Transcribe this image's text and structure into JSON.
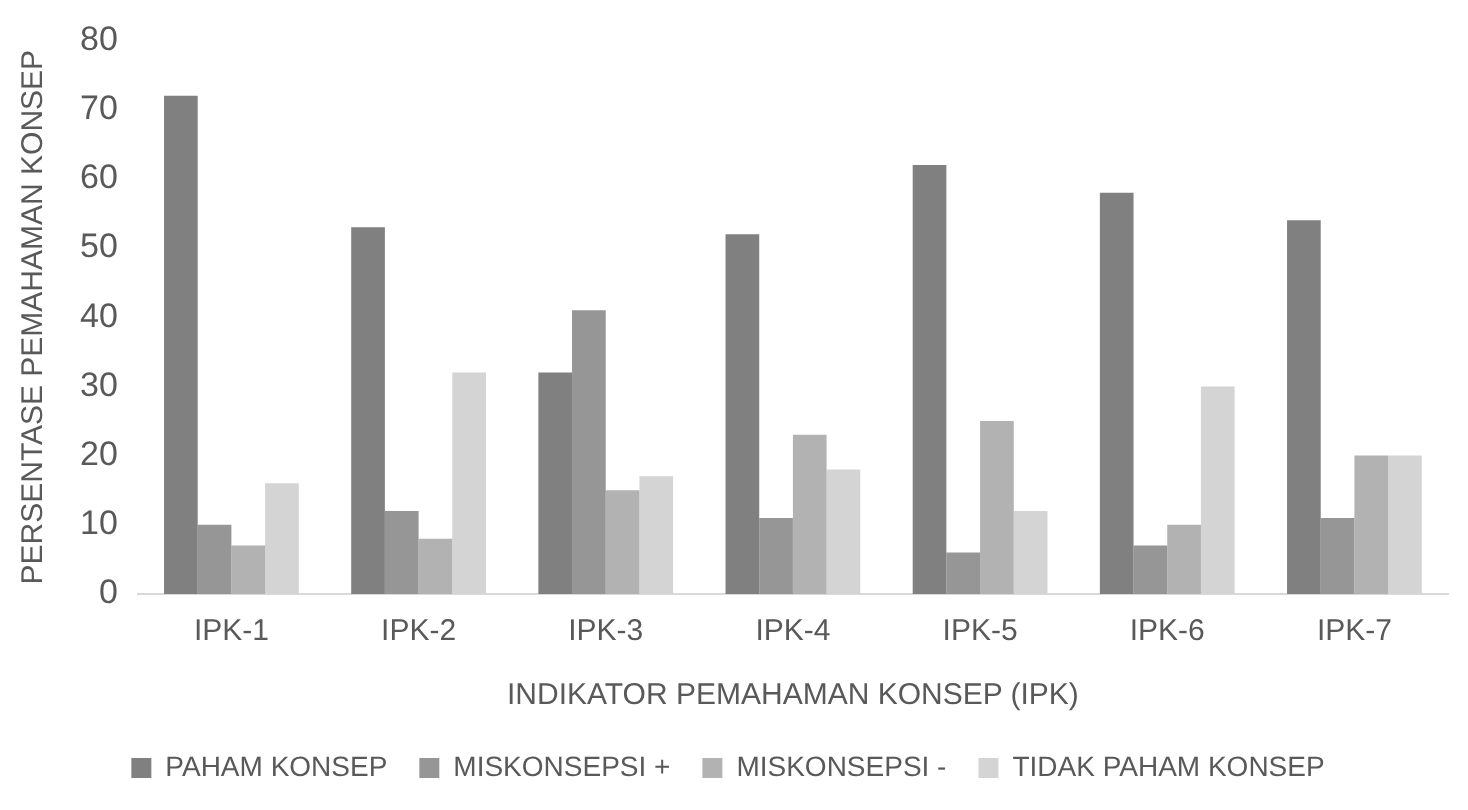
{
  "chart_data": {
    "type": "bar",
    "xlabel": "INDIKATOR PEMAHAMAN KONSEP (IPK)",
    "ylabel": "PERSENTASE PEMAHAMAN KONSEP",
    "categories": [
      "IPK-1",
      "IPK-2",
      "IPK-3",
      "IPK-4",
      "IPK-5",
      "IPK-6",
      "IPK-7"
    ],
    "series": [
      {
        "name": "PAHAM KONSEP",
        "color": "#808080",
        "values": [
          72,
          53,
          32,
          52,
          62,
          58,
          54
        ]
      },
      {
        "name": "MISKONSEPSI +",
        "color": "#969696",
        "values": [
          10,
          12,
          41,
          11,
          6,
          7,
          11
        ]
      },
      {
        "name": "MISKONSEPSI -",
        "color": "#b2b2b2",
        "values": [
          7,
          8,
          15,
          23,
          25,
          10,
          20
        ]
      },
      {
        "name": "TIDAK PAHAM KONSEP",
        "color": "#d4d4d4",
        "values": [
          16,
          32,
          17,
          18,
          12,
          30,
          20
        ]
      }
    ],
    "ylim": [
      0,
      80
    ],
    "yticks": [
      0,
      10,
      20,
      30,
      40,
      50,
      60,
      70,
      80
    ],
    "grid": false,
    "legend": "bottom"
  }
}
